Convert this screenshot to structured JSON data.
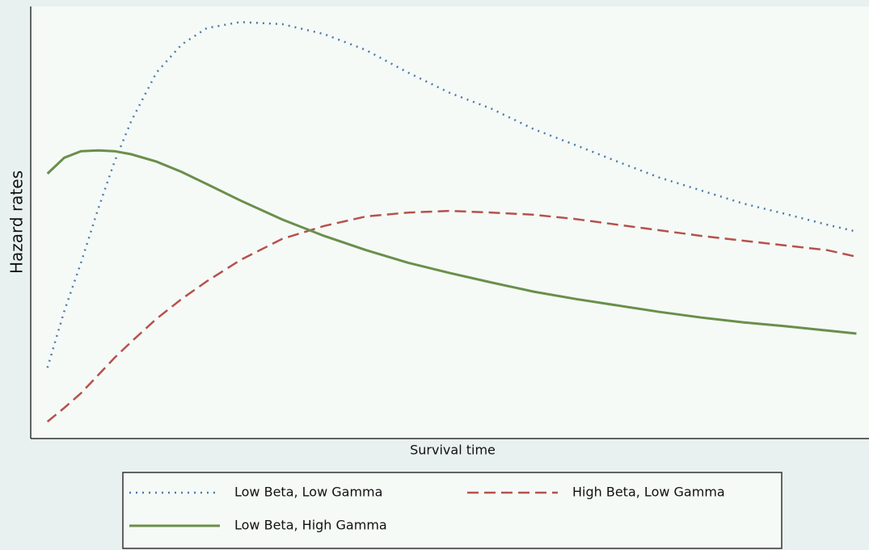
{
  "chart_data": {
    "type": "line",
    "x_label": "Survival time",
    "y_label": "Hazard rates",
    "x": [
      2,
      4,
      6,
      8,
      10,
      12,
      15,
      18,
      21,
      25,
      30,
      35,
      40,
      45,
      50,
      55,
      60,
      65,
      70,
      75,
      80,
      85,
      90,
      95,
      98.5
    ],
    "xlim": [
      0,
      100
    ],
    "ylim": [
      0,
      100
    ],
    "series": [
      {
        "name": "Low Beta, Low Gamma",
        "color": "#4f7aa8",
        "style": "dotted",
        "values": [
          16.4,
          29.5,
          40.7,
          52.9,
          64.1,
          73.5,
          84.7,
          91.2,
          95,
          96.4,
          95.9,
          93.6,
          89.9,
          84.7,
          80,
          76.3,
          71.6,
          67.9,
          64.1,
          60.4,
          57.4,
          54.4,
          52,
          49.5,
          47.9
        ]
      },
      {
        "name": "High Beta, Low Gamma",
        "color": "#b5524c",
        "style": "dashed",
        "values": [
          3.9,
          7.1,
          10.5,
          14.6,
          18.7,
          22.4,
          27.7,
          32.3,
          36.4,
          41.3,
          46.2,
          49.2,
          51.4,
          52.3,
          52.7,
          52.3,
          51.8,
          50.8,
          49.5,
          48.2,
          46.9,
          45.8,
          44.7,
          43.6,
          42.1
        ]
      },
      {
        "name": "Low Beta, High Gamma",
        "color": "#6a8f4a",
        "style": "solid",
        "values": [
          61.3,
          65,
          66.5,
          66.7,
          66.5,
          65.8,
          64.1,
          61.7,
          58.9,
          55.1,
          50.7,
          46.9,
          43.6,
          40.7,
          38.3,
          36.1,
          34,
          32.3,
          30.8,
          29.3,
          28,
          26.9,
          26,
          25,
          24.3
        ]
      }
    ]
  }
}
